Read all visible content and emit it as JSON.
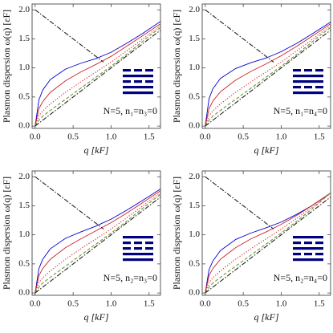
{
  "chart_data": [
    {
      "type": "line",
      "x_label": "q [kF]",
      "y_label": "Plasmon dispersion ω(q) [εF]",
      "annotation": "N=5, n₁=n₃=0",
      "pattern": [
        true,
        false,
        true,
        false,
        false
      ],
      "xlim": [
        -0.04,
        1.65
      ],
      "ylim": [
        -0.04,
        2.1
      ],
      "xticks": [
        {
          "value": 0,
          "label": "0.0"
        },
        {
          "value": 0.5,
          "label": "0.5"
        },
        {
          "value": 1,
          "label": "1.0"
        },
        {
          "value": 1.5,
          "label": "1.5"
        }
      ],
      "yticks": [
        {
          "value": 0,
          "label": "0.0"
        },
        {
          "value": 0.5,
          "label": "0.5"
        },
        {
          "value": 1,
          "label": "1.0"
        },
        {
          "value": 1.5,
          "label": "1.5"
        },
        {
          "value": 2,
          "label": "2.0"
        }
      ],
      "series": [
        {
          "color": "#0000cc",
          "style": "solid",
          "x": [
            0,
            0.05,
            0.1,
            0.2,
            0.4,
            0.6,
            0.8,
            1.0,
            1.2,
            1.4,
            1.65
          ],
          "values": [
            0,
            0.45,
            0.62,
            0.8,
            0.98,
            1.08,
            1.16,
            1.27,
            1.42,
            1.58,
            1.8
          ]
        },
        {
          "color": "#cc2222",
          "style": "solid",
          "x": [
            0,
            0.05,
            0.1,
            0.2,
            0.4,
            0.6,
            0.8,
            1.0,
            1.2,
            1.4,
            1.65
          ],
          "values": [
            0,
            0.3,
            0.42,
            0.58,
            0.78,
            0.93,
            1.06,
            1.2,
            1.37,
            1.54,
            1.76
          ]
        },
        {
          "color": "#dd2222",
          "style": "dotted",
          "x": [
            0,
            0.05,
            0.1,
            0.2,
            0.4,
            0.6,
            0.8,
            1.0,
            1.2,
            1.4,
            1.65
          ],
          "values": [
            0,
            0.18,
            0.26,
            0.38,
            0.58,
            0.76,
            0.93,
            1.1,
            1.29,
            1.48,
            1.73
          ]
        },
        {
          "color": "#669933",
          "style": "dashed",
          "x": [
            0,
            0.05,
            0.1,
            0.2,
            0.4,
            0.6,
            0.8,
            1.0,
            1.2,
            1.4,
            1.65
          ],
          "values": [
            0,
            0.1,
            0.17,
            0.27,
            0.46,
            0.65,
            0.84,
            1.03,
            1.23,
            1.44,
            1.7
          ]
        },
        {
          "color": "#222222",
          "style": "dashdot",
          "x": [
            0,
            1.65
          ],
          "values": [
            0,
            1.65
          ]
        },
        {
          "color": "#222222",
          "style": "dashdot",
          "x": [
            0,
            0.9
          ],
          "values": [
            2,
            1.1
          ]
        }
      ]
    },
    {
      "type": "line",
      "x_label": "q [kF]",
      "y_label": "Plasmon dispersion ω(q) [εF]",
      "annotation": "N=5, n₁=n₄=0",
      "pattern": [
        true,
        false,
        false,
        true,
        false
      ],
      "xlim": [
        -0.04,
        1.65
      ],
      "ylim": [
        -0.04,
        2.1
      ],
      "xticks": [
        {
          "value": 0,
          "label": "0.0"
        },
        {
          "value": 0.5,
          "label": "0.5"
        },
        {
          "value": 1,
          "label": "1.0"
        },
        {
          "value": 1.5,
          "label": "1.5"
        }
      ],
      "yticks": [
        {
          "value": 0,
          "label": "0.0"
        },
        {
          "value": 0.5,
          "label": "0.5"
        },
        {
          "value": 1,
          "label": "1.0"
        },
        {
          "value": 1.5,
          "label": "1.5"
        },
        {
          "value": 2,
          "label": "2.0"
        }
      ],
      "series": [
        {
          "color": "#0000cc",
          "style": "solid",
          "x": [
            0,
            0.05,
            0.1,
            0.2,
            0.4,
            0.6,
            0.8,
            1.0,
            1.2,
            1.4,
            1.65
          ],
          "values": [
            0,
            0.47,
            0.64,
            0.82,
            0.99,
            1.09,
            1.17,
            1.28,
            1.42,
            1.58,
            1.79
          ]
        },
        {
          "color": "#cc2222",
          "style": "solid",
          "x": [
            0,
            0.05,
            0.1,
            0.2,
            0.4,
            0.6,
            0.8,
            1.0,
            1.2,
            1.4,
            1.65
          ],
          "values": [
            0,
            0.3,
            0.43,
            0.59,
            0.79,
            0.94,
            1.07,
            1.21,
            1.37,
            1.54,
            1.76
          ]
        },
        {
          "color": "#dd2222",
          "style": "dotted",
          "x": [
            0,
            0.05,
            0.1,
            0.2,
            0.4,
            0.6,
            0.8,
            1.0,
            1.2,
            1.4,
            1.65
          ],
          "values": [
            0,
            0.18,
            0.26,
            0.38,
            0.58,
            0.76,
            0.93,
            1.1,
            1.29,
            1.48,
            1.73
          ]
        },
        {
          "color": "#669933",
          "style": "dashed",
          "x": [
            0,
            0.05,
            0.1,
            0.2,
            0.4,
            0.6,
            0.8,
            1.0,
            1.2,
            1.4,
            1.65
          ],
          "values": [
            0,
            0.1,
            0.17,
            0.27,
            0.46,
            0.65,
            0.84,
            1.03,
            1.23,
            1.44,
            1.7
          ]
        },
        {
          "color": "#222222",
          "style": "dashdot",
          "x": [
            0,
            1.65
          ],
          "values": [
            0,
            1.65
          ]
        },
        {
          "color": "#222222",
          "style": "dashdot",
          "x": [
            0,
            0.9
          ],
          "values": [
            2,
            1.1
          ]
        }
      ]
    },
    {
      "type": "line",
      "x_label": "q [kF]",
      "y_label": "Plasmon dispersion ω(q) [εF]",
      "annotation": "N=5, n₂=n₃=0",
      "pattern": [
        false,
        true,
        true,
        false,
        false
      ],
      "xlim": [
        -0.04,
        1.65
      ],
      "ylim": [
        -0.04,
        2.1
      ],
      "xticks": [
        {
          "value": 0,
          "label": "0.0"
        },
        {
          "value": 0.5,
          "label": "0.5"
        },
        {
          "value": 1,
          "label": "1.0"
        },
        {
          "value": 1.5,
          "label": "1.5"
        }
      ],
      "yticks": [
        {
          "value": 0,
          "label": "0.0"
        },
        {
          "value": 0.5,
          "label": "0.5"
        },
        {
          "value": 1,
          "label": "1.0"
        },
        {
          "value": 1.5,
          "label": "1.5"
        },
        {
          "value": 2,
          "label": "2.0"
        }
      ],
      "series": [
        {
          "color": "#0000cc",
          "style": "solid",
          "x": [
            0,
            0.05,
            0.1,
            0.2,
            0.4,
            0.6,
            0.8,
            1.0,
            1.2,
            1.4,
            1.65
          ],
          "values": [
            0,
            0.42,
            0.58,
            0.76,
            0.94,
            1.05,
            1.15,
            1.27,
            1.42,
            1.58,
            1.79
          ]
        },
        {
          "color": "#cc2222",
          "style": "solid",
          "x": [
            0,
            0.05,
            0.1,
            0.2,
            0.4,
            0.6,
            0.8,
            1.0,
            1.2,
            1.4,
            1.65
          ],
          "values": [
            0,
            0.3,
            0.42,
            0.58,
            0.78,
            0.93,
            1.07,
            1.21,
            1.37,
            1.54,
            1.76
          ]
        },
        {
          "color": "#dd2222",
          "style": "dotted",
          "x": [
            0,
            0.05,
            0.1,
            0.2,
            0.4,
            0.6,
            0.8,
            1.0,
            1.2,
            1.4,
            1.65
          ],
          "values": [
            0,
            0.18,
            0.26,
            0.38,
            0.58,
            0.76,
            0.93,
            1.1,
            1.29,
            1.48,
            1.73
          ]
        },
        {
          "color": "#669933",
          "style": "dashed",
          "x": [
            0,
            0.05,
            0.1,
            0.2,
            0.4,
            0.6,
            0.8,
            1.0,
            1.2,
            1.4,
            1.65
          ],
          "values": [
            0,
            0.1,
            0.17,
            0.27,
            0.46,
            0.65,
            0.84,
            1.03,
            1.23,
            1.44,
            1.7
          ]
        },
        {
          "color": "#222222",
          "style": "dashdot",
          "x": [
            0,
            1.65
          ],
          "values": [
            0,
            1.65
          ]
        },
        {
          "color": "#222222",
          "style": "dashdot",
          "x": [
            0,
            0.9
          ],
          "values": [
            2,
            1.1
          ]
        }
      ]
    },
    {
      "type": "line",
      "x_label": "q [kF]",
      "y_label": "Plasmon dispersion ω(q) [εF]",
      "annotation": "N=5, n₂=n₄=0",
      "pattern": [
        false,
        true,
        false,
        true,
        false
      ],
      "xlim": [
        -0.04,
        1.65
      ],
      "ylim": [
        -0.04,
        2.1
      ],
      "xticks": [
        {
          "value": 0,
          "label": "0.0"
        },
        {
          "value": 0.5,
          "label": "0.5"
        },
        {
          "value": 1,
          "label": "1.0"
        },
        {
          "value": 1.5,
          "label": "1.5"
        }
      ],
      "yticks": [
        {
          "value": 0,
          "label": "0.0"
        },
        {
          "value": 0.5,
          "label": "0.5"
        },
        {
          "value": 1,
          "label": "1.0"
        },
        {
          "value": 1.5,
          "label": "1.5"
        },
        {
          "value": 2,
          "label": "2.0"
        }
      ],
      "series": [
        {
          "color": "#0000cc",
          "style": "solid",
          "x": [
            0,
            0.05,
            0.1,
            0.2,
            0.4,
            0.6,
            0.8,
            1.0,
            1.2,
            1.4,
            1.65
          ],
          "values": [
            0,
            0.4,
            0.55,
            0.73,
            0.92,
            1.03,
            1.12,
            1.22,
            1.35,
            1.5,
            1.72
          ]
        },
        {
          "color": "#cc2222",
          "style": "solid",
          "x": [
            0,
            0.05,
            0.1,
            0.2,
            0.4,
            0.6,
            0.8,
            1.0,
            1.2,
            1.4,
            1.65
          ],
          "values": [
            0,
            0.3,
            0.42,
            0.58,
            0.78,
            0.93,
            1.05,
            1.18,
            1.33,
            1.5,
            1.72
          ]
        },
        {
          "color": "#dd2222",
          "style": "dotted",
          "x": [
            0,
            0.05,
            0.1,
            0.2,
            0.4,
            0.6,
            0.8,
            1.0,
            1.2,
            1.4,
            1.65
          ],
          "values": [
            0,
            0.18,
            0.26,
            0.38,
            0.58,
            0.76,
            0.93,
            1.1,
            1.28,
            1.47,
            1.72
          ]
        },
        {
          "color": "#669933",
          "style": "dashed",
          "x": [
            0,
            0.05,
            0.1,
            0.2,
            0.4,
            0.6,
            0.8,
            1.0,
            1.2,
            1.4,
            1.65
          ],
          "values": [
            0,
            0.1,
            0.17,
            0.27,
            0.46,
            0.65,
            0.84,
            1.03,
            1.23,
            1.44,
            1.72
          ]
        },
        {
          "color": "#222222",
          "style": "dashdot",
          "x": [
            0,
            1.65
          ],
          "values": [
            0,
            1.65
          ]
        },
        {
          "color": "#222222",
          "style": "dashdot",
          "x": [
            0,
            0.9
          ],
          "values": [
            2,
            1.1
          ]
        }
      ]
    }
  ]
}
